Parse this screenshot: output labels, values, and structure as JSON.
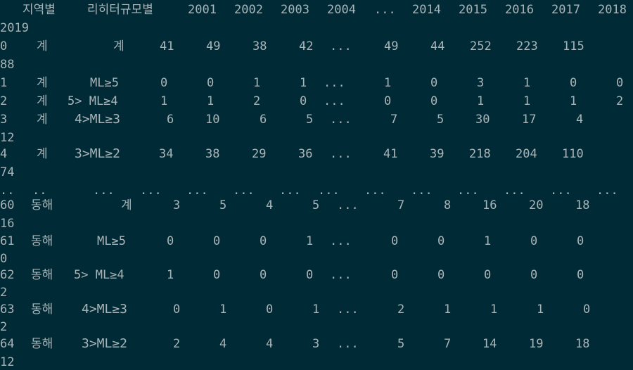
{
  "header": [
    "지역별",
    "리히터규모별",
    "2001",
    "2002",
    "2003",
    "2004",
    "...",
    "2014",
    "2015",
    "2016",
    "2017",
    "2018"
  ],
  "header_wrap": "2019",
  "rows": [
    {
      "cells": [
        "0",
        "계",
        "계",
        "41",
        "49",
        "38",
        "42",
        "...",
        "49",
        "44",
        "252",
        "223",
        "115"
      ],
      "wrap": "88"
    },
    {
      "cells": [
        "1",
        "계",
        "ML≥5",
        "0",
        "0",
        "1",
        "1",
        "...",
        "1",
        "0",
        "3",
        "1",
        "0",
        "0"
      ]
    },
    {
      "cells": [
        "2",
        "계",
        "5> ML≥4",
        "1",
        "1",
        "2",
        "0",
        "...",
        "0",
        "0",
        "1",
        "1",
        "1",
        "2"
      ]
    },
    {
      "cells": [
        "3",
        "계",
        "4>ML≥3",
        "6",
        "10",
        "6",
        "5",
        "...",
        "7",
        "5",
        "30",
        "17",
        "4"
      ],
      "wrap": "12"
    },
    {
      "cells": [
        "4",
        "계",
        "3>ML≥2",
        "34",
        "38",
        "29",
        "36",
        "...",
        "41",
        "39",
        "218",
        "204",
        "110"
      ],
      "wrap": "74"
    },
    {
      "cells": [
        "..",
        "..",
        "...",
        "...",
        "...",
        "...",
        "...",
        "...",
        "...",
        "...",
        "...",
        "...",
        "...",
        "..."
      ]
    },
    {
      "cells": [
        "60",
        "동해",
        "계",
        "3",
        "5",
        "4",
        "5",
        "...",
        "7",
        "8",
        "16",
        "20",
        "18"
      ],
      "wrap": "16"
    },
    {
      "cells": [
        "61",
        "동해",
        "ML≥5",
        "0",
        "0",
        "0",
        "1",
        "...",
        "0",
        "0",
        "1",
        "0",
        "0"
      ],
      "wrap": "0"
    },
    {
      "cells": [
        "62",
        "동해",
        "5> ML≥4",
        "1",
        "0",
        "0",
        "0",
        "...",
        "0",
        "0",
        "0",
        "0",
        "0"
      ],
      "wrap": "2"
    },
    {
      "cells": [
        "63",
        "동해",
        "4>ML≥3",
        "0",
        "1",
        "0",
        "1",
        "...",
        "2",
        "1",
        "1",
        "1",
        "0"
      ],
      "wrap": "2"
    },
    {
      "cells": [
        "64",
        "동해",
        "3>ML≥2",
        "2",
        "4",
        "4",
        "3",
        "...",
        "5",
        "7",
        "14",
        "19",
        "18"
      ],
      "wrap": "12"
    }
  ]
}
